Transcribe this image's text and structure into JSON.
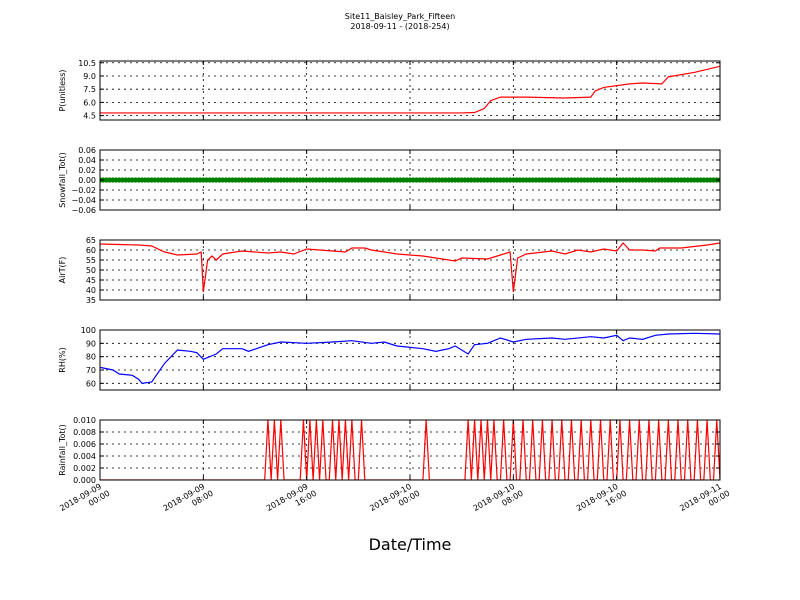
{
  "chart_data": {
    "title_line1": "Site11_Baisley_Park_Fifteen",
    "title_line2": "2018-09-11 - (2018-254)",
    "xlabel": "Date/Time",
    "x_range": [
      "2018-09-09 00:00",
      "2018-09-11 00:00"
    ],
    "x_ticks": [
      {
        "t": "2018-09-09 00:00",
        "line1": "2018-09-09",
        "line2": "00:00"
      },
      {
        "t": "2018-09-09 08:00",
        "line1": "2018-09-09",
        "line2": "08:00"
      },
      {
        "t": "2018-09-09 16:00",
        "line1": "2018-09-09",
        "line2": "16:00"
      },
      {
        "t": "2018-09-10 00:00",
        "line1": "2018-09-10",
        "line2": "00:00"
      },
      {
        "t": "2018-09-10 08:00",
        "line1": "2018-09-10",
        "line2": "08:00"
      },
      {
        "t": "2018-09-10 16:00",
        "line1": "2018-09-10",
        "line2": "16:00"
      },
      {
        "t": "2018-09-11 00:00",
        "line1": "2018-09-11",
        "line2": "00:00"
      }
    ],
    "grid": true,
    "panels": [
      {
        "type": "line",
        "ylabel": "P(unitless)",
        "color": "#ff0000",
        "ylim": [
          4.0,
          10.7
        ],
        "yticks": [
          "4.5",
          "6.0",
          "7.5",
          "9.0",
          "10.5"
        ],
        "ytick_values": [
          4.5,
          6.0,
          7.5,
          9.0,
          10.5
        ],
        "points": [
          [
            "2018-09-09 00:00",
            4.8
          ],
          [
            "2018-09-09 08:00",
            4.8
          ],
          [
            "2018-09-09 16:00",
            4.8
          ],
          [
            "2018-09-10 00:00",
            4.8
          ],
          [
            "2018-09-10 04:00",
            4.8
          ],
          [
            "2018-09-10 05:00",
            4.85
          ],
          [
            "2018-09-10 05:45",
            5.3
          ],
          [
            "2018-09-10 06:15",
            6.2
          ],
          [
            "2018-09-10 07:00",
            6.6
          ],
          [
            "2018-09-10 09:00",
            6.6
          ],
          [
            "2018-09-10 12:00",
            6.5
          ],
          [
            "2018-09-10 14:00",
            6.6
          ],
          [
            "2018-09-10 14:20",
            7.3
          ],
          [
            "2018-09-10 15:00",
            7.7
          ],
          [
            "2018-09-10 17:00",
            8.1
          ],
          [
            "2018-09-10 18:00",
            8.2
          ],
          [
            "2018-09-10 19:30",
            8.1
          ],
          [
            "2018-09-10 20:00",
            8.9
          ],
          [
            "2018-09-10 22:00",
            9.4
          ],
          [
            "2018-09-11 00:00",
            10.1
          ]
        ]
      },
      {
        "type": "scatter",
        "ylabel": "Snowfall_Tot()",
        "color": "#008000",
        "ylim": [
          -0.06,
          0.06
        ],
        "yticks": [
          "0.06",
          "0.04",
          "0.02",
          "0.00",
          "−0.02",
          "−0.04",
          "−0.06"
        ],
        "ytick_values": [
          0.06,
          0.04,
          0.02,
          0.0,
          -0.02,
          -0.04,
          -0.06
        ],
        "constant_value": 0.0,
        "interval_minutes": 15
      },
      {
        "type": "line",
        "ylabel": "AirT(F)",
        "color": "#ff0000",
        "ylim": [
          35,
          65
        ],
        "yticks": [
          "65",
          "60",
          "55",
          "50",
          "45",
          "40",
          "35"
        ],
        "ytick_values": [
          65,
          60,
          55,
          50,
          45,
          40,
          35
        ],
        "points": [
          [
            "2018-09-09 00:00",
            63
          ],
          [
            "2018-09-09 03:00",
            62.5
          ],
          [
            "2018-09-09 04:00",
            62
          ],
          [
            "2018-09-09 05:00",
            59
          ],
          [
            "2018-09-09 06:00",
            57.5
          ],
          [
            "2018-09-09 07:30",
            58
          ],
          [
            "2018-09-09 07:50",
            59
          ],
          [
            "2018-09-09 08:00",
            39
          ],
          [
            "2018-09-09 08:20",
            55
          ],
          [
            "2018-09-09 08:40",
            57
          ],
          [
            "2018-09-09 09:00",
            55
          ],
          [
            "2018-09-09 09:30",
            58
          ],
          [
            "2018-09-09 11:00",
            59.5
          ],
          [
            "2018-09-09 13:00",
            58.5
          ],
          [
            "2018-09-09 14:00",
            59
          ],
          [
            "2018-09-09 15:00",
            58
          ],
          [
            "2018-09-09 16:00",
            60.5
          ],
          [
            "2018-09-09 18:00",
            59.5
          ],
          [
            "2018-09-09 19:00",
            59
          ],
          [
            "2018-09-09 19:30",
            61
          ],
          [
            "2018-09-09 20:30",
            61
          ],
          [
            "2018-09-09 21:00",
            60
          ],
          [
            "2018-09-09 23:00",
            58
          ],
          [
            "2018-09-10 01:00",
            57
          ],
          [
            "2018-09-10 02:30",
            55.5
          ],
          [
            "2018-09-10 03:30",
            54.5
          ],
          [
            "2018-09-10 04:00",
            56
          ],
          [
            "2018-09-10 06:00",
            55.5
          ],
          [
            "2018-09-10 07:00",
            57.5
          ],
          [
            "2018-09-10 07:45",
            59
          ],
          [
            "2018-09-10 08:00",
            39
          ],
          [
            "2018-09-10 08:20",
            56
          ],
          [
            "2018-09-10 09:00",
            58
          ],
          [
            "2018-09-10 11:00",
            59.5
          ],
          [
            "2018-09-10 12:00",
            58
          ],
          [
            "2018-09-10 13:00",
            60
          ],
          [
            "2018-09-10 14:00",
            59
          ],
          [
            "2018-09-10 15:00",
            60.5
          ],
          [
            "2018-09-10 16:00",
            59.5
          ],
          [
            "2018-09-10 16:30",
            63.5
          ],
          [
            "2018-09-10 17:00",
            60
          ],
          [
            "2018-09-10 18:00",
            60
          ],
          [
            "2018-09-10 19:00",
            59.5
          ],
          [
            "2018-09-10 19:20",
            61
          ],
          [
            "2018-09-10 21:00",
            61
          ],
          [
            "2018-09-10 23:00",
            62.5
          ],
          [
            "2018-09-11 00:00",
            63.5
          ]
        ]
      },
      {
        "type": "line",
        "ylabel": "RH(%)",
        "color": "#0000ff",
        "ylim": [
          55,
          100
        ],
        "yticks": [
          "100",
          "90",
          "80",
          "70",
          "60"
        ],
        "ytick_values": [
          100,
          90,
          80,
          70,
          60
        ],
        "points": [
          [
            "2018-09-09 00:00",
            72
          ],
          [
            "2018-09-09 01:00",
            70
          ],
          [
            "2018-09-09 01:30",
            67
          ],
          [
            "2018-09-09 02:30",
            66
          ],
          [
            "2018-09-09 03:00",
            63
          ],
          [
            "2018-09-09 03:15",
            60
          ],
          [
            "2018-09-09 04:00",
            61
          ],
          [
            "2018-09-09 05:00",
            75
          ],
          [
            "2018-09-09 06:00",
            85
          ],
          [
            "2018-09-09 07:00",
            84
          ],
          [
            "2018-09-09 07:30",
            83
          ],
          [
            "2018-09-09 08:00",
            78
          ],
          [
            "2018-09-09 09:00",
            82
          ],
          [
            "2018-09-09 09:30",
            86
          ],
          [
            "2018-09-09 11:00",
            86
          ],
          [
            "2018-09-09 11:30",
            84
          ],
          [
            "2018-09-09 13:00",
            89
          ],
          [
            "2018-09-09 14:00",
            91
          ],
          [
            "2018-09-09 16:00",
            90
          ],
          [
            "2018-09-09 18:00",
            91
          ],
          [
            "2018-09-09 19:30",
            92
          ],
          [
            "2018-09-09 21:00",
            90
          ],
          [
            "2018-09-09 22:00",
            91
          ],
          [
            "2018-09-09 23:00",
            88
          ],
          [
            "2018-09-10 01:00",
            86
          ],
          [
            "2018-09-10 02:00",
            84
          ],
          [
            "2018-09-10 03:00",
            86
          ],
          [
            "2018-09-10 03:30",
            88
          ],
          [
            "2018-09-10 04:30",
            82
          ],
          [
            "2018-09-10 05:00",
            89
          ],
          [
            "2018-09-10 06:00",
            90
          ],
          [
            "2018-09-10 07:00",
            94
          ],
          [
            "2018-09-10 08:00",
            91
          ],
          [
            "2018-09-10 09:00",
            93
          ],
          [
            "2018-09-10 11:00",
            94
          ],
          [
            "2018-09-10 12:00",
            93
          ],
          [
            "2018-09-10 14:00",
            95
          ],
          [
            "2018-09-10 15:00",
            94
          ],
          [
            "2018-09-10 16:00",
            96
          ],
          [
            "2018-09-10 16:30",
            92
          ],
          [
            "2018-09-10 17:00",
            94
          ],
          [
            "2018-09-10 18:00",
            93
          ],
          [
            "2018-09-10 19:00",
            96
          ],
          [
            "2018-09-10 20:00",
            97
          ],
          [
            "2018-09-10 22:00",
            97.5
          ],
          [
            "2018-09-11 00:00",
            97
          ]
        ]
      },
      {
        "type": "line",
        "ylabel": "Rainfall_Tot()",
        "color": "#ff0000",
        "ylim": [
          0.0,
          0.01
        ],
        "yticks": [
          "0.010",
          "0.008",
          "0.006",
          "0.004",
          "0.002",
          "0.000"
        ],
        "ytick_values": [
          0.01,
          0.008,
          0.006,
          0.004,
          0.002,
          0.0
        ],
        "interval_minutes": 15,
        "baseline": 0.0,
        "spike_value": 0.01,
        "spike_times": [
          "2018-09-09 13:00",
          "2018-09-09 13:30",
          "2018-09-09 14:00",
          "2018-09-09 15:45",
          "2018-09-09 16:15",
          "2018-09-09 16:45",
          "2018-09-09 17:15",
          "2018-09-09 18:00",
          "2018-09-09 18:30",
          "2018-09-09 19:00",
          "2018-09-09 19:30",
          "2018-09-09 20:15",
          "2018-09-10 01:15",
          "2018-09-10 04:30",
          "2018-09-10 05:00",
          "2018-09-10 05:30",
          "2018-09-10 06:00",
          "2018-09-10 06:30",
          "2018-09-10 07:15",
          "2018-09-10 08:00",
          "2018-09-10 08:45",
          "2018-09-10 09:30",
          "2018-09-10 10:15",
          "2018-09-10 11:00",
          "2018-09-10 11:45",
          "2018-09-10 12:30",
          "2018-09-10 13:15",
          "2018-09-10 14:00",
          "2018-09-10 14:45",
          "2018-09-10 15:30",
          "2018-09-10 16:15",
          "2018-09-10 17:00",
          "2018-09-10 17:45",
          "2018-09-10 18:30",
          "2018-09-10 19:15",
          "2018-09-10 20:00",
          "2018-09-10 20:45",
          "2018-09-10 21:30",
          "2018-09-10 22:15",
          "2018-09-10 23:00",
          "2018-09-10 23:45"
        ]
      }
    ]
  }
}
